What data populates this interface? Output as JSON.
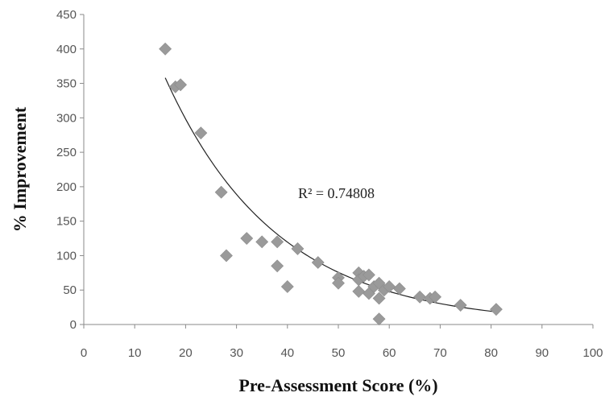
{
  "chart_data": {
    "type": "scatter",
    "title": "",
    "xlabel": "Pre-Assessment Score (%)",
    "ylabel": "% Improvement",
    "xlim": [
      0,
      100
    ],
    "ylim": [
      0,
      450
    ],
    "xticks": [
      0,
      10,
      20,
      30,
      40,
      50,
      60,
      70,
      80,
      90,
      100
    ],
    "yticks": [
      0,
      50,
      100,
      150,
      200,
      250,
      300,
      350,
      400,
      450
    ],
    "grid": false,
    "legend": "none",
    "marker": "diamond",
    "marker_color": "#9a9a9a",
    "trendline_color": "#222222",
    "points": [
      {
        "x": 16,
        "y": 400
      },
      {
        "x": 18,
        "y": 345
      },
      {
        "x": 19,
        "y": 348
      },
      {
        "x": 23,
        "y": 278
      },
      {
        "x": 27,
        "y": 192
      },
      {
        "x": 28,
        "y": 100
      },
      {
        "x": 32,
        "y": 125
      },
      {
        "x": 35,
        "y": 120
      },
      {
        "x": 38,
        "y": 120
      },
      {
        "x": 38,
        "y": 85
      },
      {
        "x": 40,
        "y": 55
      },
      {
        "x": 42,
        "y": 110
      },
      {
        "x": 46,
        "y": 90
      },
      {
        "x": 50,
        "y": 68
      },
      {
        "x": 50,
        "y": 60
      },
      {
        "x": 54,
        "y": 75
      },
      {
        "x": 54,
        "y": 65
      },
      {
        "x": 54,
        "y": 48
      },
      {
        "x": 55,
        "y": 70
      },
      {
        "x": 56,
        "y": 72
      },
      {
        "x": 56,
        "y": 45
      },
      {
        "x": 57,
        "y": 55
      },
      {
        "x": 58,
        "y": 60
      },
      {
        "x": 58,
        "y": 38
      },
      {
        "x": 58,
        "y": 8
      },
      {
        "x": 59,
        "y": 50
      },
      {
        "x": 60,
        "y": 55
      },
      {
        "x": 62,
        "y": 52
      },
      {
        "x": 66,
        "y": 40
      },
      {
        "x": 68,
        "y": 38
      },
      {
        "x": 69,
        "y": 40
      },
      {
        "x": 74,
        "y": 28
      },
      {
        "x": 81,
        "y": 22
      }
    ],
    "trendline": {
      "type": "exponential",
      "a": 744,
      "b": -0.0457,
      "x_range": [
        16,
        81
      ],
      "r_squared_label": "R² = 0.74808"
    }
  }
}
